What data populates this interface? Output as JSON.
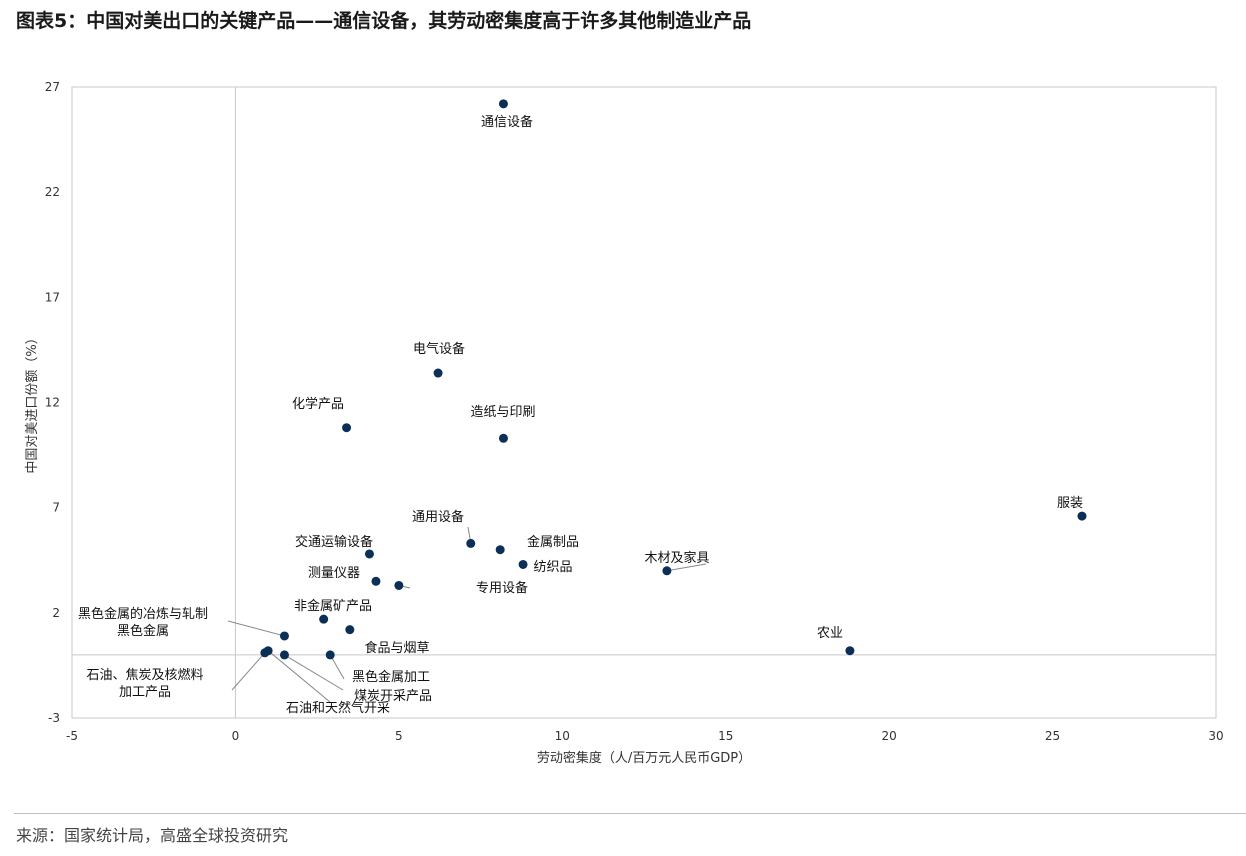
{
  "title": "图表5：中国对美出口的关键产品——通信设备，其劳动密集度高于许多其他制造业产品",
  "source": "来源：国家统计局，高盛全球投资研究",
  "colors": {
    "marker": "#0b2f55",
    "leader": "#888888",
    "frame": "#c8c8c8"
  },
  "chart_data": {
    "type": "scatter",
    "xlabel": "劳动密集度（人/百万元人民币GDP）",
    "ylabel": "中国对美进口份额（%）",
    "xlim": [
      -5,
      30
    ],
    "ylim": [
      -3,
      27
    ],
    "xticks": [
      "-5",
      "0",
      "5",
      "10",
      "15",
      "20",
      "25",
      "30"
    ],
    "yticks": [
      "-3",
      "2",
      "7",
      "12",
      "17",
      "22",
      "27"
    ],
    "grid": false,
    "points": [
      {
        "label": "通信设备",
        "x": 8.2,
        "y": 26.2
      },
      {
        "label": "电气设备",
        "x": 6.2,
        "y": 13.4
      },
      {
        "label": "化学产品",
        "x": 3.4,
        "y": 10.8
      },
      {
        "label": "造纸与印刷",
        "x": 8.2,
        "y": 10.3
      },
      {
        "label": "服装",
        "x": 25.9,
        "y": 6.6
      },
      {
        "label": "通用设备",
        "x": 7.2,
        "y": 5.3
      },
      {
        "label": "金属制品",
        "x": 8.1,
        "y": 5.0
      },
      {
        "label": "纺织品",
        "x": 8.8,
        "y": 4.3
      },
      {
        "label": "交通运输设备",
        "x": 4.1,
        "y": 4.8
      },
      {
        "label": "木材及家具",
        "x": 13.2,
        "y": 4.0
      },
      {
        "label": "测量仪器",
        "x": 4.3,
        "y": 3.5
      },
      {
        "label": "专用设备",
        "x": 5.0,
        "y": 3.3
      },
      {
        "label": "非金属矿产品",
        "x": 2.7,
        "y": 1.7
      },
      {
        "label": "黑色金属的冶炼与轧制黑色金属",
        "x": 1.5,
        "y": 0.9
      },
      {
        "label": "食品与烟草",
        "x": 3.5,
        "y": 1.2
      },
      {
        "label": "农业",
        "x": 18.8,
        "y": 0.2
      },
      {
        "label": "石油、焦炭及核燃料加工产品",
        "x": 0.9,
        "y": 0.1
      },
      {
        "label": "石油和天然气开采",
        "x": 1.0,
        "y": 0.2
      },
      {
        "label": "煤炭开采产品",
        "x": 1.5,
        "y": 0.0
      },
      {
        "label": "黑色金属加工",
        "x": 2.9,
        "y": 0.0
      }
    ]
  }
}
